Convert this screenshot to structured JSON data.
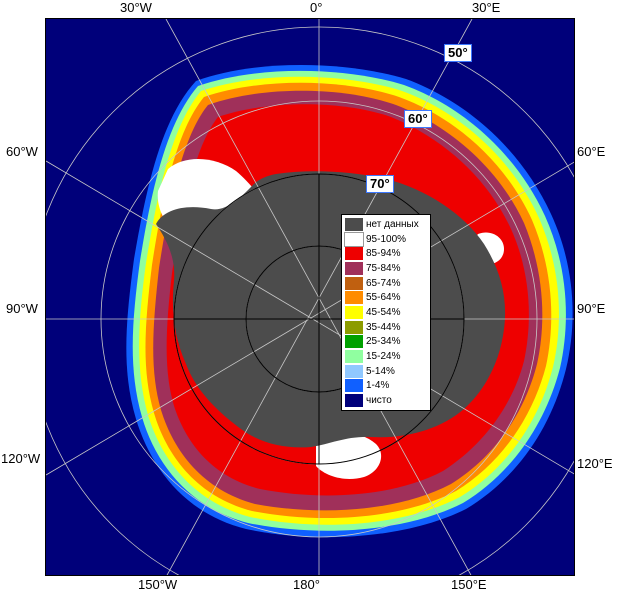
{
  "map": {
    "colors": {
      "ocean": "#00007a",
      "land_nodata": "#4c4c4c",
      "ice_95_100": "#ffffff",
      "ice_85_94": "#ee0000",
      "ice_75_84": "#a0305a",
      "ice_65_74": "#c06010",
      "ice_55_64": "#ff8c00",
      "ice_45_54": "#ffff00",
      "ice_35_44": "#8c9c00",
      "ice_25_34": "#00a000",
      "ice_15_24": "#90ffa0",
      "ice_5_14": "#90c8ff",
      "ice_1_4": "#1060ff",
      "grid": "#c8c8c8"
    },
    "longitude_labels": {
      "top": [
        "30°W",
        "0°",
        "30°E"
      ],
      "left": [
        "60°W",
        "90°W",
        "120°W"
      ],
      "right": [
        "60°E",
        "90°E",
        "120°E"
      ],
      "bottom": [
        "150°W",
        "180°",
        "150°E"
      ]
    },
    "latitude_labels": [
      "50°",
      "60°",
      "70°"
    ]
  },
  "legend": {
    "items": [
      {
        "label": "нет данных",
        "color": "#4c4c4c"
      },
      {
        "label": "95-100%",
        "color": "#ffffff"
      },
      {
        "label": "85-94%",
        "color": "#ee0000"
      },
      {
        "label": "75-84%",
        "color": "#a0305a"
      },
      {
        "label": "65-74%",
        "color": "#c06010"
      },
      {
        "label": "55-64%",
        "color": "#ff8c00"
      },
      {
        "label": "45-54%",
        "color": "#ffff00"
      },
      {
        "label": "35-44%",
        "color": "#8c9c00"
      },
      {
        "label": "25-34%",
        "color": "#00a000"
      },
      {
        "label": "15-24%",
        "color": "#90ffa0"
      },
      {
        "label": "5-14%",
        "color": "#90c8ff"
      },
      {
        "label": "1-4%",
        "color": "#1060ff"
      },
      {
        "label": "чисто",
        "color": "#00007a"
      }
    ]
  }
}
